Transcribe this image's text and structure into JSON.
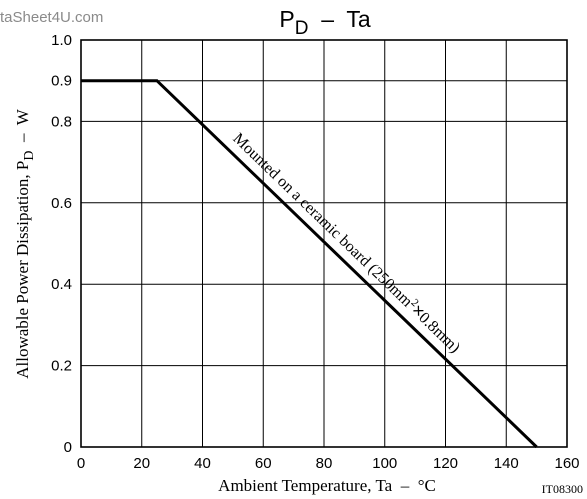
{
  "watermark": "taSheet4U.com",
  "figure_id": "IT08300",
  "chart_data": {
    "type": "line",
    "title": "PD – Ta",
    "title_main": "P",
    "title_sub": "D",
    "title_rest": "  –  Ta",
    "xlabel": "Ambient Temperature, Ta  –  °C",
    "ylabel_main": "Allowable Power Dissipation, P",
    "ylabel_sub": "D",
    "ylabel_rest": "  –  W",
    "xlim": [
      0,
      160
    ],
    "ylim": [
      0,
      1.0
    ],
    "grid": true,
    "x_ticks": [
      0,
      20,
      40,
      60,
      80,
      100,
      120,
      140,
      160
    ],
    "x_tick_labels": [
      "0",
      "20",
      "40",
      "60",
      "80",
      "100",
      "120",
      "140",
      "160"
    ],
    "y_ticks": [
      0,
      0.2,
      0.4,
      0.6,
      0.8,
      0.9,
      1.0
    ],
    "y_tick_labels": [
      "0",
      "0.2",
      "0.4",
      "0.6",
      "0.8",
      "0.9",
      "1.0"
    ],
    "series": [
      {
        "x": [
          0,
          25,
          150
        ],
        "y": [
          0.9,
          0.9,
          0
        ]
      }
    ],
    "annotation": {
      "text_before": "Mounted on a ceramic board (250mm",
      "superscript": "2",
      "times": "×",
      "text_after": "0.8mm)"
    }
  }
}
